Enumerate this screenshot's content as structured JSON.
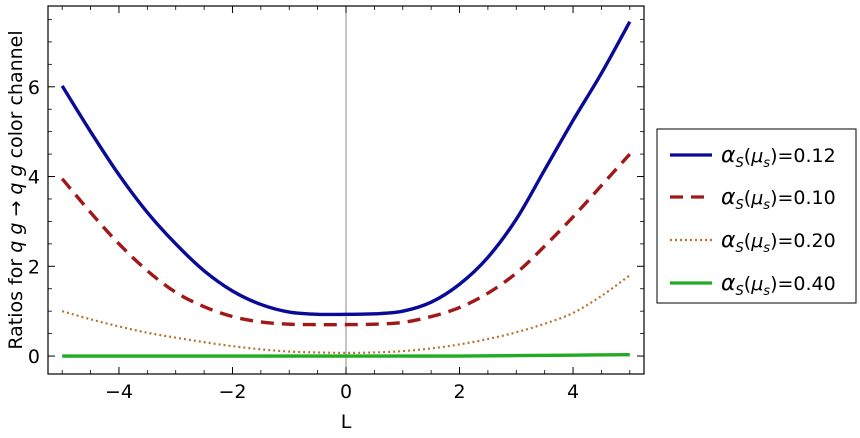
{
  "chart_data": {
    "type": "line",
    "xlabel": "L",
    "ylabel_parts": {
      "prefix": "Ratios for ",
      "from": "q g",
      "arrow": "→",
      "to": "q g",
      "suffix": " color channel"
    },
    "xlim": [
      -5.25,
      5.25
    ],
    "ylim": [
      -0.4,
      7.8
    ],
    "x_ticks": [
      -4,
      -2,
      0,
      2,
      4
    ],
    "x_tick_labels": [
      "−4",
      "−2",
      "0",
      "2",
      "4"
    ],
    "y_ticks": [
      0,
      2,
      4,
      6
    ],
    "y_tick_labels": [
      "0",
      "2",
      "4",
      "6"
    ],
    "legend_position": "right",
    "legend_symbol": "α",
    "legend_sub1": "S",
    "legend_paren_open": "(",
    "legend_mu": "μ",
    "legend_sub2": "s",
    "legend_paren_close": ")",
    "series": [
      {
        "name": "=0.12",
        "color": "#0a0a99",
        "style": "solid",
        "x": [
          -5,
          -4.5,
          -4,
          -3.5,
          -3,
          -2.5,
          -2,
          -1.5,
          -1,
          -0.5,
          0,
          0.5,
          1,
          1.5,
          2,
          2.5,
          3,
          3.5,
          4,
          4.5,
          5
        ],
        "y": [
          6.02,
          5.0,
          4.04,
          3.2,
          2.5,
          1.9,
          1.45,
          1.15,
          0.98,
          0.93,
          0.93,
          0.94,
          1.0,
          1.2,
          1.6,
          2.2,
          3.05,
          4.15,
          5.25,
          6.3,
          7.45
        ]
      },
      {
        "name": "=0.10",
        "color": "#a01818",
        "style": "dashed",
        "x": [
          -5,
          -4.5,
          -4,
          -3.5,
          -3,
          -2.5,
          -2,
          -1.5,
          -1,
          -0.5,
          0,
          0.5,
          1,
          1.5,
          2,
          2.5,
          3,
          3.5,
          4,
          4.5,
          5
        ],
        "y": [
          3.95,
          3.2,
          2.5,
          1.9,
          1.42,
          1.1,
          0.88,
          0.76,
          0.71,
          0.7,
          0.7,
          0.71,
          0.75,
          0.88,
          1.08,
          1.4,
          1.85,
          2.45,
          3.1,
          3.8,
          4.5
        ],
        "dash": "13,8"
      },
      {
        "name": "=0.20",
        "color": "#b8732e",
        "style": "dotted",
        "x": [
          -5,
          -4.5,
          -4,
          -3.5,
          -3,
          -2.5,
          -2,
          -1.5,
          -1,
          -0.5,
          0,
          0.5,
          1,
          1.5,
          2,
          2.5,
          3,
          3.5,
          4,
          4.5,
          5
        ],
        "y": [
          1.0,
          0.82,
          0.66,
          0.52,
          0.41,
          0.31,
          0.22,
          0.15,
          0.1,
          0.08,
          0.07,
          0.08,
          0.11,
          0.17,
          0.26,
          0.38,
          0.53,
          0.72,
          0.96,
          1.34,
          1.8
        ],
        "dash": "2,3"
      },
      {
        "name": "=0.40",
        "color": "#22aa22",
        "style": "solid",
        "x": [
          -5,
          -4,
          -3,
          -2,
          -1,
          0,
          1,
          2,
          3,
          4,
          5
        ],
        "y": [
          0.0,
          0.0,
          0.0,
          0.0,
          0.0,
          0.0,
          0.0,
          0.0,
          0.01,
          0.02,
          0.03
        ]
      }
    ]
  }
}
